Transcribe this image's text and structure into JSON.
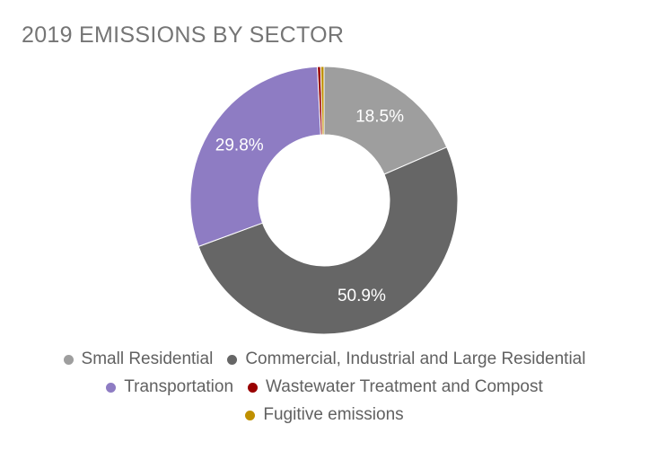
{
  "chart_data": {
    "type": "pie",
    "donut": true,
    "title": "2019 EMISSIONS BY SECTOR",
    "legend_position": "bottom",
    "slices": [
      {
        "name": "Small Residential",
        "value": 18.5,
        "label": "18.5%",
        "color": "#9e9e9e"
      },
      {
        "name": "Commercial, Industrial and Large Residential",
        "value": 50.9,
        "label": "50.9%",
        "color": "#666666"
      },
      {
        "name": "Transportation",
        "value": 29.8,
        "label": "29.8%",
        "color": "#8e7cc3"
      },
      {
        "name": "Wastewater Treatment and Compost",
        "value": 0.4,
        "label": "",
        "color": "#990000"
      },
      {
        "name": "Fugitive emissions",
        "value": 0.4,
        "label": "",
        "color": "#bf9000"
      }
    ]
  }
}
